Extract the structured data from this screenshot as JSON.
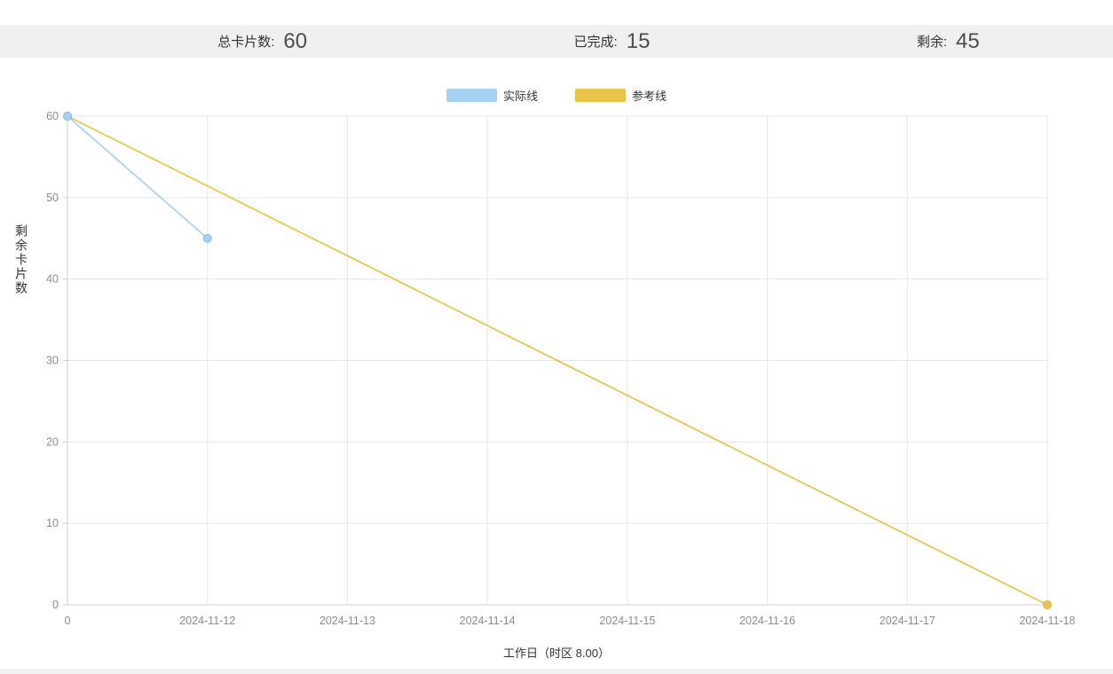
{
  "stats": {
    "total": {
      "label": "总卡片数:",
      "value": "60"
    },
    "completed": {
      "label": "已完成:",
      "value": "15"
    },
    "remaining": {
      "label": "剩余:",
      "value": "45"
    }
  },
  "colors": {
    "stats_bar_bg": "#f0f0f0",
    "grid": "#e7e7e7",
    "axis": "#cfcfcf",
    "tick_text": "#8c8c8c"
  },
  "chart_data": {
    "type": "line",
    "title": "",
    "xlabel": "工作日（时区 8.00）",
    "ylabel": "剩余卡片数",
    "ylim": [
      0,
      60
    ],
    "yticks": [
      0,
      10,
      20,
      30,
      40,
      50,
      60
    ],
    "grid": true,
    "legend_position": "top-center",
    "x_categories": [
      "0",
      "2024-11-12",
      "2024-11-13",
      "2024-11-14",
      "2024-11-15",
      "2024-11-16",
      "2024-11-17",
      "2024-11-18"
    ],
    "series": [
      {
        "name": "实际线",
        "color": "#a7d1f3",
        "marker_stroke": "#86bce8",
        "points": [
          [
            0,
            60
          ],
          [
            1,
            45
          ]
        ]
      },
      {
        "name": "参考线",
        "color": "#e9c34b",
        "marker_stroke": "#dcb23a",
        "points": [
          [
            0,
            60
          ],
          [
            7,
            0
          ]
        ]
      }
    ]
  }
}
